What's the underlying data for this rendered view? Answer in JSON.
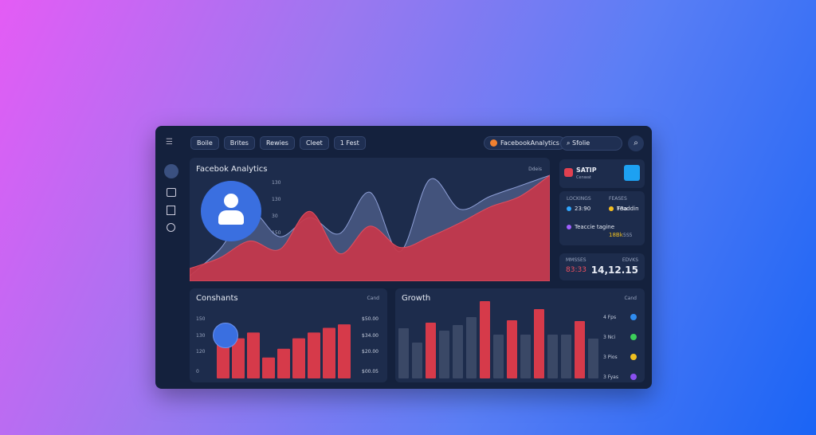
{
  "nav": {
    "tabs": [
      "Boile",
      "Brites",
      "Rewies",
      "Cleet",
      "1 Fest"
    ],
    "account": "FacebookAnalytics",
    "search": "Sfolie"
  },
  "side": {
    "card_title": "SATIP",
    "card_sub": "Cenwat",
    "col_heads": [
      "LOCKINGS",
      "FEASES"
    ],
    "items": [
      {
        "label": "23:90",
        "color": "#2fa6ff"
      },
      {
        "label": "Feaddin",
        "color": "#e04050"
      },
      {
        "label": "Teaccie tagine",
        "color": "#a060ff"
      },
      {
        "label": "T3a",
        "color": "#f0c020"
      }
    ],
    "extra": "18Bk",
    "extra2": "5S5",
    "stat_labels": [
      "MMSSES",
      "EDVKS"
    ],
    "stat_values": [
      "83:33",
      "14,12.15"
    ]
  },
  "chart_data": [
    {
      "type": "area",
      "title": "Facebok Analytics",
      "legend": "Ddeis",
      "axis_labels": [
        "130",
        "130",
        "30",
        "150"
      ],
      "ylim": [
        0,
        100
      ],
      "series": [
        {
          "color": "#4a5a85",
          "values": [
            5,
            30,
            66,
            42,
            60,
            45,
            84,
            28,
            96,
            68,
            80,
            90,
            100
          ]
        },
        {
          "color": "#c8374a",
          "values": [
            12,
            22,
            38,
            30,
            66,
            26,
            52,
            32,
            42,
            55,
            70,
            80,
            100
          ]
        }
      ]
    },
    {
      "type": "bar",
      "title": "Conshants",
      "legend": "Cand",
      "axis_labels": [
        "150",
        "130",
        "120",
        "0"
      ],
      "right_labels": [
        "$50.00",
        "$34.00",
        "$20.00",
        "$00.05"
      ],
      "ylim": [
        0,
        100
      ],
      "color": "#d63a4a",
      "values": [
        60,
        69,
        79,
        36,
        51,
        69,
        79,
        87,
        93
      ]
    },
    {
      "type": "bar",
      "title": "Growth",
      "legend": "Cand",
      "ylim": [
        0,
        100
      ],
      "colors": [
        "#3a4866",
        "#3a4866",
        "#d63a4a",
        "#3a4866",
        "#3a4866",
        "#3a4866",
        "#d63a4a",
        "#3a4866",
        "#d63a4a",
        "#3a4866",
        "#d63a4a",
        "#3a4866",
        "#3a4866",
        "#d63a4a",
        "#3a4866"
      ],
      "values": [
        63,
        45,
        70,
        60,
        67,
        77,
        97,
        55,
        73,
        55,
        87,
        55,
        55,
        72,
        50
      ],
      "legend_items": [
        {
          "label": "4 Fps",
          "color": "#2f8cf0"
        },
        {
          "label": "3 Nci",
          "color": "#3ccf5a"
        },
        {
          "label": "3 Pios",
          "color": "#f0c020"
        },
        {
          "label": "3 Fyas",
          "color": "#8a50f0"
        }
      ]
    }
  ]
}
